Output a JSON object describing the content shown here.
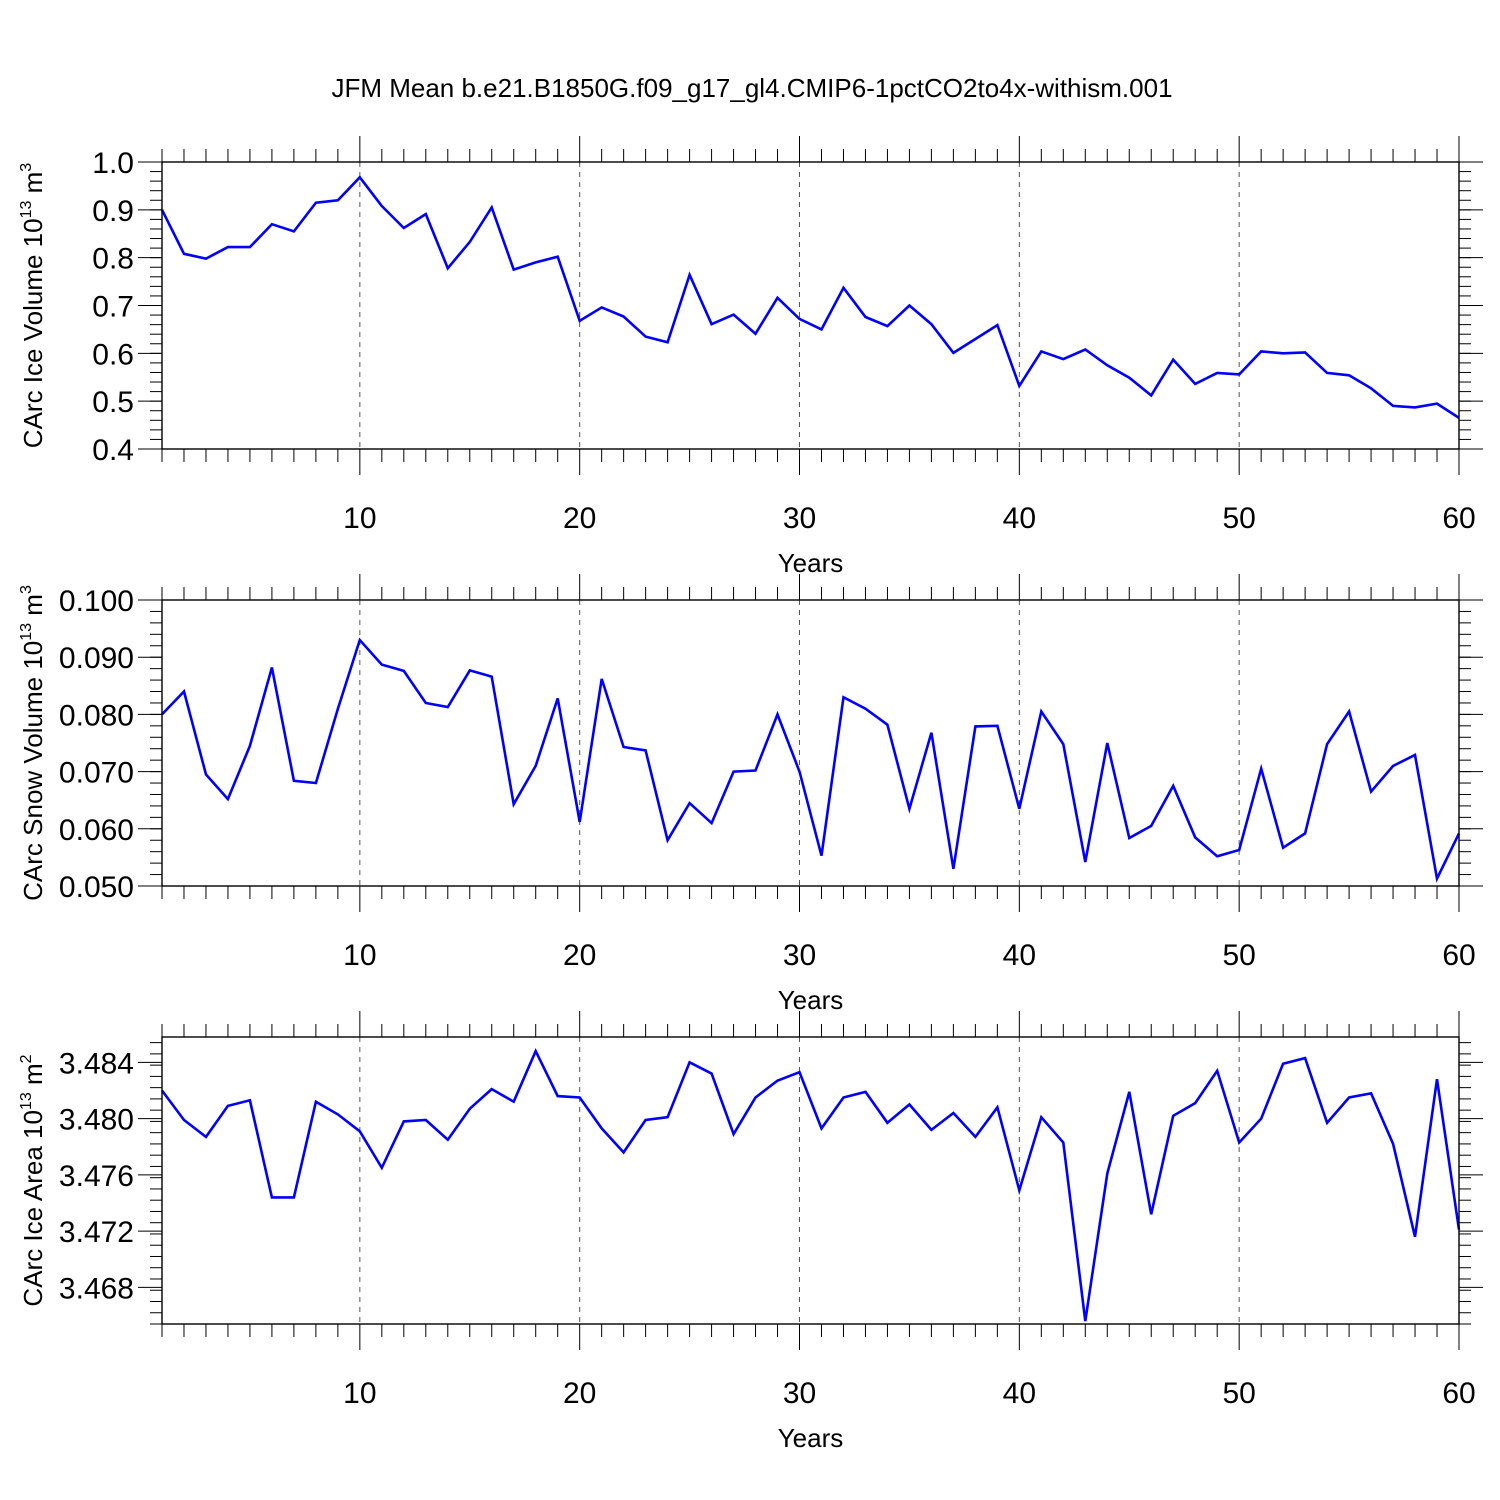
{
  "figure": {
    "title": "JFM Mean b.e21.B1850G.f09_g17_gl4.CMIP6-1pctCO2to4x-withism.001",
    "line_color": "#0000ff",
    "grid_color": "#555555"
  },
  "chart_data": [
    {
      "type": "line",
      "xlabel": "Years",
      "ylabel_parts": [
        "CArc Ice Volume 10",
        "13",
        " m",
        "3"
      ],
      "xlim": [
        1,
        60
      ],
      "ylim": [
        0.4,
        1.0
      ],
      "x_major_ticks": [
        10,
        20,
        30,
        40,
        50,
        60
      ],
      "y_ticks": [
        0.4,
        0.5,
        0.6,
        0.7,
        0.8,
        0.9,
        1.0
      ],
      "y_tick_labels": [
        "0.4",
        "0.5",
        "0.6",
        "0.7",
        "0.8",
        "0.9",
        "1.0"
      ],
      "y_minor_step": 0.02,
      "grid": "vertical dashed at major x ticks",
      "x": [
        1,
        2,
        3,
        4,
        5,
        6,
        7,
        8,
        9,
        10,
        11,
        12,
        13,
        14,
        15,
        16,
        17,
        18,
        19,
        20,
        21,
        22,
        23,
        24,
        25,
        26,
        27,
        28,
        29,
        30,
        31,
        32,
        33,
        34,
        35,
        36,
        37,
        38,
        39,
        40,
        41,
        42,
        43,
        44,
        45,
        46,
        47,
        48,
        49,
        50,
        51,
        52,
        53,
        54,
        55,
        56,
        57,
        58,
        59,
        60
      ],
      "values": [
        0.9,
        0.808,
        0.798,
        0.822,
        0.822,
        0.87,
        0.855,
        0.915,
        0.92,
        0.968,
        0.908,
        0.862,
        0.891,
        0.778,
        0.833,
        0.905,
        0.775,
        0.79,
        0.802,
        0.668,
        0.696,
        0.677,
        0.635,
        0.623,
        0.764,
        0.661,
        0.681,
        0.641,
        0.716,
        0.672,
        0.65,
        0.737,
        0.676,
        0.657,
        0.7,
        0.661,
        0.601,
        0.63,
        0.659,
        0.532,
        0.604,
        0.588,
        0.608,
        0.575,
        0.549,
        0.512,
        0.587,
        0.536,
        0.559,
        0.556,
        0.604,
        0.6,
        0.602,
        0.559,
        0.554,
        0.527,
        0.49,
        0.487,
        0.495,
        0.465
      ]
    },
    {
      "type": "line",
      "xlabel": "Years",
      "ylabel_parts": [
        "CArc Snow Volume 10",
        "13",
        " m",
        "3"
      ],
      "xlim": [
        1,
        60
      ],
      "ylim": [
        0.05,
        0.1
      ],
      "x_major_ticks": [
        10,
        20,
        30,
        40,
        50,
        60
      ],
      "y_ticks": [
        0.05,
        0.06,
        0.07,
        0.08,
        0.09,
        0.1
      ],
      "y_tick_labels": [
        "0.050",
        "0.060",
        "0.070",
        "0.080",
        "0.090",
        "0.100"
      ],
      "y_minor_step": 0.002,
      "grid": "vertical dashed at major x ticks",
      "x": [
        1,
        2,
        3,
        4,
        5,
        6,
        7,
        8,
        9,
        10,
        11,
        12,
        13,
        14,
        15,
        16,
        17,
        18,
        19,
        20,
        21,
        22,
        23,
        24,
        25,
        26,
        27,
        28,
        29,
        30,
        31,
        32,
        33,
        34,
        35,
        36,
        37,
        38,
        39,
        40,
        41,
        42,
        43,
        44,
        45,
        46,
        47,
        48,
        49,
        50,
        51,
        52,
        53,
        54,
        55,
        56,
        57,
        58,
        59,
        60
      ],
      "values": [
        0.08,
        0.084,
        0.0695,
        0.0652,
        0.0745,
        0.0882,
        0.0684,
        0.068,
        0.081,
        0.093,
        0.0887,
        0.0876,
        0.082,
        0.0813,
        0.0877,
        0.0866,
        0.0643,
        0.071,
        0.0828,
        0.0612,
        0.0862,
        0.0743,
        0.0737,
        0.058,
        0.0645,
        0.061,
        0.07,
        0.0702,
        0.08,
        0.07,
        0.0553,
        0.083,
        0.081,
        0.0782,
        0.0635,
        0.0768,
        0.053,
        0.0779,
        0.078,
        0.0635,
        0.0805,
        0.0748,
        0.0542,
        0.075,
        0.0584,
        0.0605,
        0.0675,
        0.0585,
        0.0552,
        0.0563,
        0.0705,
        0.0567,
        0.0592,
        0.0748,
        0.0805,
        0.0665,
        0.071,
        0.0729,
        0.0513,
        0.0592
      ]
    },
    {
      "type": "line",
      "xlabel": "Years",
      "ylabel_parts": [
        "CArc Ice Area 10",
        "13",
        " m",
        "2"
      ],
      "xlim": [
        1,
        60
      ],
      "ylim": [
        3.4654,
        3.4858
      ],
      "x_major_ticks": [
        10,
        20,
        30,
        40,
        50,
        60
      ],
      "y_ticks": [
        3.468,
        3.472,
        3.476,
        3.48,
        3.484
      ],
      "y_tick_labels": [
        "3.468",
        "3.472",
        "3.476",
        "3.480",
        "3.484"
      ],
      "y_minor_step": 0.0008,
      "grid": "vertical dashed at major x ticks",
      "x": [
        1,
        2,
        3,
        4,
        5,
        6,
        7,
        8,
        9,
        10,
        11,
        12,
        13,
        14,
        15,
        16,
        17,
        18,
        19,
        20,
        21,
        22,
        23,
        24,
        25,
        26,
        27,
        28,
        29,
        30,
        31,
        32,
        33,
        34,
        35,
        36,
        37,
        38,
        39,
        40,
        41,
        42,
        43,
        44,
        45,
        46,
        47,
        48,
        49,
        50,
        51,
        52,
        53,
        54,
        55,
        56,
        57,
        58,
        59,
        60
      ],
      "values": [
        3.482,
        3.4799,
        3.4787,
        3.4809,
        3.4813,
        3.4744,
        3.4744,
        3.4812,
        3.4803,
        3.4791,
        3.4765,
        3.4798,
        3.4799,
        3.4785,
        3.4807,
        3.4821,
        3.4812,
        3.4848,
        3.4816,
        3.4815,
        3.4793,
        3.4776,
        3.4799,
        3.4801,
        3.484,
        3.4832,
        3.4789,
        3.4815,
        3.4827,
        3.4833,
        3.4793,
        3.4815,
        3.4819,
        3.4797,
        3.481,
        3.4792,
        3.4804,
        3.4787,
        3.4808,
        3.4749,
        3.4801,
        3.4783,
        3.4656,
        3.4761,
        3.4819,
        3.4732,
        3.4802,
        3.4811,
        3.4834,
        3.4783,
        3.48,
        3.4839,
        3.4843,
        3.4797,
        3.4815,
        3.4818,
        3.4782,
        3.4716,
        3.4828,
        3.4721
      ]
    }
  ]
}
